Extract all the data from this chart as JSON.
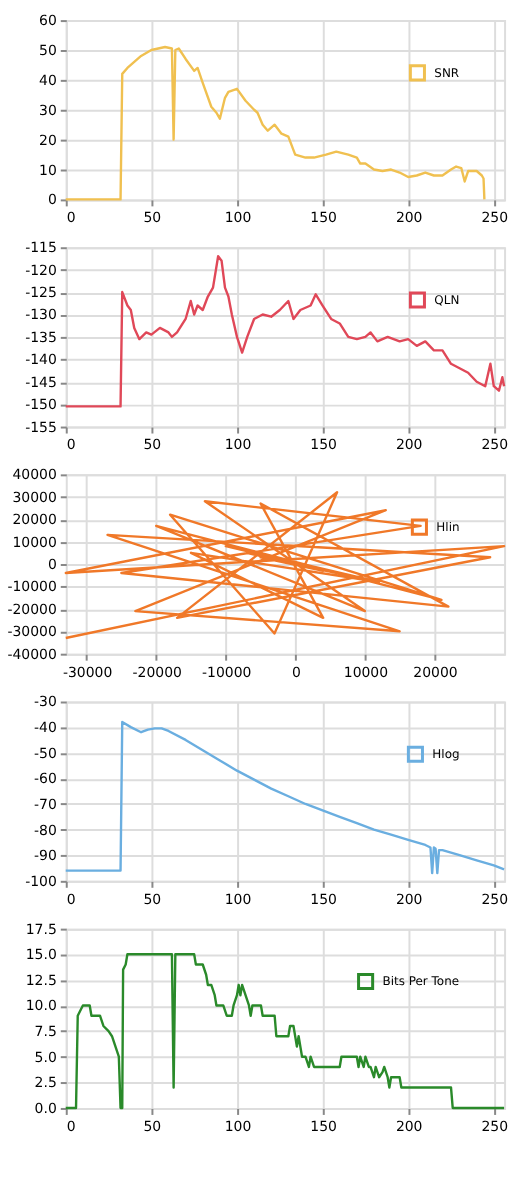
{
  "chart_data": [
    {
      "type": "line",
      "xlim": [
        0,
        256
      ],
      "xticks": [
        0,
        50,
        100,
        150,
        200,
        250
      ],
      "ylim": [
        0,
        60
      ],
      "yticks": [
        0,
        10,
        20,
        30,
        40,
        50,
        60
      ],
      "grid": true,
      "legend": "top right",
      "marker": "none",
      "series": [
        {
          "name": "SNR",
          "color": "#f0c050",
          "x": [
            0,
            32,
            33,
            36,
            40,
            44,
            50,
            58,
            62,
            63,
            64,
            66,
            70,
            75,
            77,
            80,
            85,
            88,
            90,
            93,
            95,
            100,
            105,
            110,
            112,
            115,
            118,
            122,
            126,
            130,
            134,
            140,
            145,
            152,
            158,
            165,
            170,
            172,
            175,
            180,
            185,
            190,
            195,
            200,
            205,
            210,
            215,
            220,
            225,
            228,
            231,
            233,
            235,
            240,
            243,
            244,
            244.5
          ],
          "values": [
            0,
            0,
            42,
            44,
            46,
            48,
            50,
            51,
            50.5,
            20,
            50,
            50.5,
            47,
            43,
            44,
            39,
            31,
            29,
            27,
            34,
            36,
            37,
            33,
            30,
            29,
            25,
            23,
            25,
            22,
            21,
            15,
            14,
            14,
            15,
            16,
            15,
            14,
            12,
            12,
            10,
            9.5,
            10,
            9,
            7.5,
            8,
            9,
            8,
            8,
            10,
            11,
            10.5,
            6,
            9.5,
            9.5,
            8,
            7,
            0
          ]
        }
      ]
    },
    {
      "type": "line",
      "xlim": [
        0,
        256
      ],
      "xticks": [
        0,
        50,
        100,
        150,
        200,
        250
      ],
      "ylim": [
        -155,
        -115
      ],
      "yticks": [
        -155,
        -150,
        -145,
        -140,
        -135,
        -130,
        -125,
        -120,
        -115
      ],
      "grid": true,
      "legend": "top right",
      "marker": "none",
      "series": [
        {
          "name": "QLN",
          "color": "#e04858",
          "x": [
            0,
            32,
            33,
            36,
            38,
            40,
            43,
            47,
            50,
            55,
            60,
            62,
            65,
            70,
            73,
            75,
            77,
            80,
            83,
            86,
            89,
            91,
            93,
            95,
            97,
            100,
            103,
            106,
            110,
            115,
            120,
            125,
            130,
            133,
            137,
            143,
            146,
            150,
            155,
            160,
            165,
            170,
            175,
            178,
            182,
            188,
            195,
            200,
            205,
            210,
            215,
            220,
            225,
            230,
            235,
            240,
            245,
            248,
            250,
            253,
            255,
            256
          ],
          "values": [
            -150.5,
            -150.5,
            -125,
            -128,
            -129,
            -133,
            -135.5,
            -134,
            -134.5,
            -133,
            -134,
            -135,
            -134,
            -131,
            -127,
            -130,
            -128,
            -129,
            -126,
            -124,
            -117,
            -118,
            -124,
            -126,
            -130,
            -135,
            -138.5,
            -135,
            -131,
            -130,
            -130.5,
            -129,
            -127,
            -131,
            -129,
            -128,
            -125.5,
            -128,
            -131,
            -132,
            -135,
            -135.5,
            -135,
            -134,
            -136,
            -135,
            -136,
            -135.5,
            -137,
            -136,
            -138,
            -138,
            -141,
            -142,
            -143,
            -145,
            -146,
            -141,
            -146,
            -147,
            -144,
            -146
          ]
        }
      ]
    },
    {
      "type": "line",
      "xlim": [
        -33000,
        30000
      ],
      "xticks": [
        -30000,
        -20000,
        -10000,
        0,
        10000,
        20000
      ],
      "ylim": [
        -40000,
        40000
      ],
      "yticks": [
        -40000,
        -30000,
        -20000,
        -10000,
        0,
        10000,
        20000,
        30000,
        40000
      ],
      "grid": true,
      "legend": "top right",
      "marker": "none",
      "series": [
        {
          "name": "Hlin",
          "color": "#f07828",
          "x": [
            -33000,
            30000,
            -33000,
            13000,
            -23000,
            15000,
            -27000,
            28000,
            -17000,
            6000,
            -3000,
            -18000,
            21000,
            -20000,
            10000,
            -13000,
            18000,
            -25000,
            22000,
            -5000,
            4000,
            -15000,
            12000,
            -10000,
            9000,
            -7000,
            6000,
            -5000,
            4000,
            -3000,
            2000,
            -1000,
            0
          ],
          "values": [
            -33000,
            8000,
            -4000,
            24000,
            -21000,
            -30000,
            13000,
            3000,
            -24000,
            32000,
            -31000,
            22000,
            -16000,
            17000,
            -21000,
            28000,
            17000,
            -4000,
            -19000,
            27000,
            -24000,
            5000,
            -8000,
            8000,
            -6000,
            5000,
            -4000,
            3000,
            -3000,
            2000,
            -1000,
            1000,
            0
          ]
        }
      ]
    },
    {
      "type": "line",
      "xlim": [
        0,
        256
      ],
      "xticks": [
        0,
        50,
        100,
        150,
        200,
        250
      ],
      "ylim": [
        -100,
        -30
      ],
      "yticks": [
        -100,
        -90,
        -80,
        -70,
        -60,
        -50,
        -40,
        -30
      ],
      "grid": true,
      "legend": "top right",
      "marker": "none",
      "series": [
        {
          "name": "Hlog",
          "color": "#6aaee0",
          "x": [
            0,
            32,
            33,
            38,
            44,
            48,
            52,
            56,
            60,
            70,
            80,
            90,
            100,
            110,
            120,
            130,
            140,
            150,
            160,
            170,
            180,
            190,
            200,
            210,
            213,
            214,
            215,
            216,
            217,
            218,
            220,
            230,
            240,
            250,
            256
          ],
          "values": [
            -96,
            -96,
            -38,
            -40,
            -42,
            -41,
            -40.5,
            -40.5,
            -41.5,
            -45,
            -49,
            -53,
            -57,
            -60.5,
            -64,
            -67,
            -70,
            -72.5,
            -75,
            -77.5,
            -80,
            -82,
            -84,
            -86,
            -87,
            -97,
            -87,
            -87.5,
            -97,
            -88,
            -88,
            -90,
            -92,
            -94,
            -95.5
          ]
        }
      ]
    },
    {
      "type": "line",
      "xlim": [
        0,
        256
      ],
      "xticks": [
        0,
        50,
        100,
        150,
        200,
        250
      ],
      "ylim": [
        0,
        17.5
      ],
      "yticks": [
        {
          "value": 0,
          "label": "0.0"
        },
        2.5,
        {
          "value": 5,
          "label": "5.0"
        },
        7.5,
        {
          "value": 10,
          "label": "10.0"
        },
        12.5,
        {
          "value": 15,
          "label": "15.0"
        },
        17.5
      ],
      "grid": true,
      "legend": "top right",
      "marker": "none",
      "series": [
        {
          "name": "Bits Per Tone",
          "color": "#2a8a2a",
          "x": [
            0,
            6,
            7,
            10,
            14,
            15,
            20,
            22,
            25,
            27,
            29,
            31,
            32,
            33,
            33.5,
            35,
            36,
            62,
            63,
            64,
            75,
            76,
            80,
            82,
            83,
            85,
            87,
            88,
            92,
            94,
            97,
            98,
            100,
            101,
            102,
            103,
            105,
            107,
            108,
            109,
            114,
            115,
            122,
            123,
            130,
            131,
            133,
            134,
            135,
            136,
            138,
            140,
            142,
            143,
            145,
            160,
            161,
            170,
            171,
            172,
            174,
            175,
            177,
            178,
            180,
            181,
            183,
            185,
            186,
            188,
            189,
            190,
            195,
            196,
            225,
            226,
            256
          ],
          "values": [
            0,
            0,
            9,
            10,
            10,
            9,
            9,
            8,
            7.5,
            7,
            6,
            5,
            0,
            0,
            13.5,
            14,
            15,
            15,
            2,
            15,
            15,
            14,
            14,
            13,
            12,
            12,
            11,
            10,
            10,
            9,
            9,
            10,
            11,
            12,
            11,
            12,
            11,
            10,
            9,
            10,
            10,
            9,
            9,
            7,
            7,
            8,
            8,
            7,
            6,
            7,
            5,
            5,
            4,
            5,
            4,
            4,
            5,
            5,
            4,
            5,
            4,
            5,
            4,
            4,
            3,
            4,
            3,
            3.5,
            4,
            3,
            2,
            3,
            3,
            2,
            2,
            0,
            0
          ]
        }
      ]
    }
  ]
}
